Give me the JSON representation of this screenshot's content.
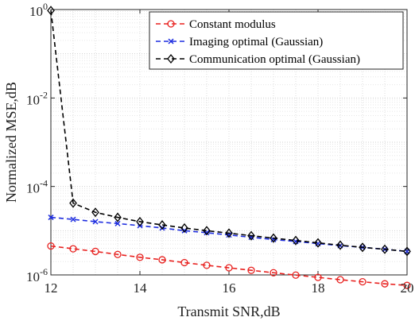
{
  "chart_data": {
    "type": "line",
    "title": "",
    "xlabel": "Transmit SNR,dB",
    "ylabel": "Normalized MSE,dB",
    "xlim": [
      12,
      20
    ],
    "ylim": [
      1e-06,
      1
    ],
    "yscale": "log",
    "grid": true,
    "legend_position": "top-right",
    "x_ticks": [
      12,
      14,
      16,
      18,
      20
    ],
    "x_tick_labels": [
      "12",
      "14",
      "16",
      "18",
      "20"
    ],
    "y_ticks": [
      1e-06,
      0.0001,
      0.01,
      1
    ],
    "y_tick_labels": [
      {
        "base": "10",
        "exp": "-6"
      },
      {
        "base": "10",
        "exp": "-4"
      },
      {
        "base": "10",
        "exp": "-2"
      },
      {
        "base": "10",
        "exp": "0"
      }
    ],
    "x": [
      12,
      12.5,
      13,
      13.5,
      14,
      14.5,
      15,
      15.5,
      16,
      16.5,
      17,
      17.5,
      18,
      18.5,
      19,
      19.5,
      20
    ],
    "series": [
      {
        "name": "Constant modulus",
        "color": "#e8211f",
        "dash": "dashed",
        "marker": "circle",
        "values": [
          4.5e-06,
          3.9e-06,
          3.4e-06,
          2.9e-06,
          2.5e-06,
          2.2e-06,
          1.9e-06,
          1.65e-06,
          1.45e-06,
          1.27e-06,
          1.12e-06,
          9.9e-07,
          8.8e-07,
          7.8e-07,
          7e-07,
          6.3e-07,
          5.8e-07
        ]
      },
      {
        "name": "Imaging optimal (Gaussian)",
        "color": "#1f2ee0",
        "dash": "dashed",
        "marker": "x",
        "values": [
          2e-05,
          1.8e-05,
          1.6e-05,
          1.45e-05,
          1.3e-05,
          1.15e-05,
          1e-05,
          9e-06,
          8e-06,
          7.1e-06,
          6.3e-06,
          5.7e-06,
          5.1e-06,
          4.6e-06,
          4.2e-06,
          3.8e-06,
          3.4e-06
        ]
      },
      {
        "name": "Communication optimal (Gaussian)",
        "color": "#000000",
        "dash": "dashed",
        "marker": "diamond",
        "values": [
          0.95,
          4.2e-05,
          2.6e-05,
          2e-05,
          1.6e-05,
          1.35e-05,
          1.15e-05,
          1e-05,
          8.8e-06,
          7.7e-06,
          6.8e-06,
          6e-06,
          5.3e-06,
          4.7e-06,
          4.2e-06,
          3.8e-06,
          3.4e-06
        ]
      }
    ]
  }
}
